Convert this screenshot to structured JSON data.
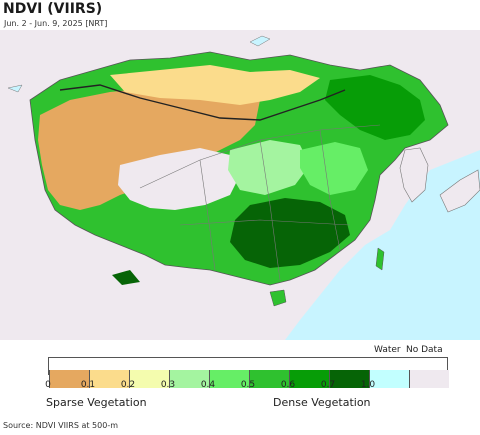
{
  "header": {
    "title": "NDVI (VIIRS)",
    "date_range": "Jun. 2 - Jun. 9, 2025 [NRT]"
  },
  "legend": {
    "colors": [
      "#e5a860",
      "#fbdc8c",
      "#f4fcae",
      "#a4f4a0",
      "#66ee66",
      "#2fc12f",
      "#079d07",
      "#066406",
      "#c2ffff",
      "#efe9ef"
    ],
    "tick_labels": [
      "0",
      "0.1",
      "0.2",
      "0.3",
      "0.4",
      "0.5",
      "0.6",
      "0.7",
      "1.0"
    ],
    "water_label": "Water",
    "nodata_label": "No Data",
    "sparse_label": "Sparse Vegetation",
    "dense_label": "Dense Vegetation"
  },
  "source": "Source: NDVI VIIRS at 500-m"
}
